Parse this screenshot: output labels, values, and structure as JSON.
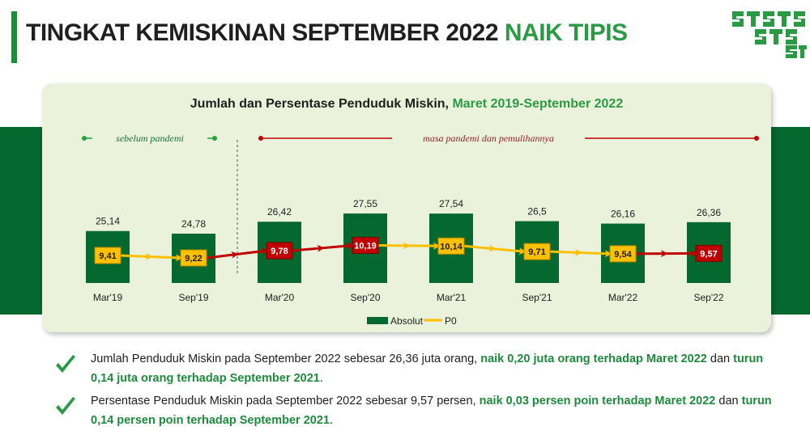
{
  "header": {
    "title_main": "TINGKAT KEMISKINAN SEPTEMBER 2022 ",
    "title_accent": "NAIK TIPIS"
  },
  "logo": {
    "icon": "bps-logo-icon",
    "text": "STATISTIK"
  },
  "chart_header": {
    "title_main": "Jumlah dan Persentase Penduduk Miskin, ",
    "title_accent": "Maret 2019-September 2022"
  },
  "colors": {
    "bar": "#04682f",
    "band": "#04682f",
    "panel": "#ebf2db",
    "label_yellow": "#ffc000",
    "label_red": "#c00000",
    "line_yellow": "#ffc000",
    "line_red": "#c00000",
    "accent_green": "#2b9a45",
    "period_green": "#22a33e"
  },
  "chart_data": {
    "type": "bar",
    "title": "Jumlah dan Persentase Penduduk Miskin, Maret 2019-September 2022",
    "categories": [
      "Mar'19",
      "Sep'19",
      "Mar'20",
      "Sep'20",
      "Mar'21",
      "Sep'21",
      "Mar'22",
      "Sep'22"
    ],
    "series": [
      {
        "name": "Absolut",
        "type": "bar",
        "values": [
          "25,14",
          "24,78",
          "26,42",
          "27,55",
          "27,54",
          "26,5",
          "26,16",
          "26,36"
        ]
      },
      {
        "name": "P0",
        "type": "line",
        "values": [
          "9,41",
          "9,22",
          "9,78",
          "10,19",
          "10,14",
          "9,71",
          "9,54",
          "9,57"
        ]
      }
    ],
    "p0_label_colors": [
      "yellow",
      "yellow",
      "red",
      "red",
      "yellow",
      "yellow",
      "yellow",
      "red"
    ],
    "p0_segment_colors": [
      "yellow",
      "red",
      "red",
      "yellow",
      "yellow",
      "yellow",
      "red"
    ],
    "periods": [
      {
        "label": "sebelum pandemi",
        "color": "green",
        "start": 0,
        "end": 1
      },
      {
        "label": "masa pandemi dan pemulihannya",
        "color": "red",
        "start": 2,
        "end": 7
      }
    ],
    "legend": {
      "position": "bottom",
      "items": [
        "Absolut",
        "P0"
      ]
    },
    "grid": false
  },
  "bullets": [
    {
      "icon": "check-icon",
      "p1": "Jumlah Penduduk Miskin pada September 2022 sebesar 26,36 juta orang, ",
      "h1": "naik 0,20 juta orang terhadap Maret 2022",
      "p2": " dan ",
      "h2": "turun 0,14 juta orang terhadap September 2021",
      "p3": "."
    },
    {
      "icon": "check-icon",
      "p1": "Persentase Penduduk Miskin pada September 2022 sebesar 9,57 persen, ",
      "h1": "naik 0,03 persen poin terhadap Maret 2022",
      "p2": " dan ",
      "h2": "turun 0,14 persen poin terhadap September 2021",
      "p3": "."
    }
  ]
}
